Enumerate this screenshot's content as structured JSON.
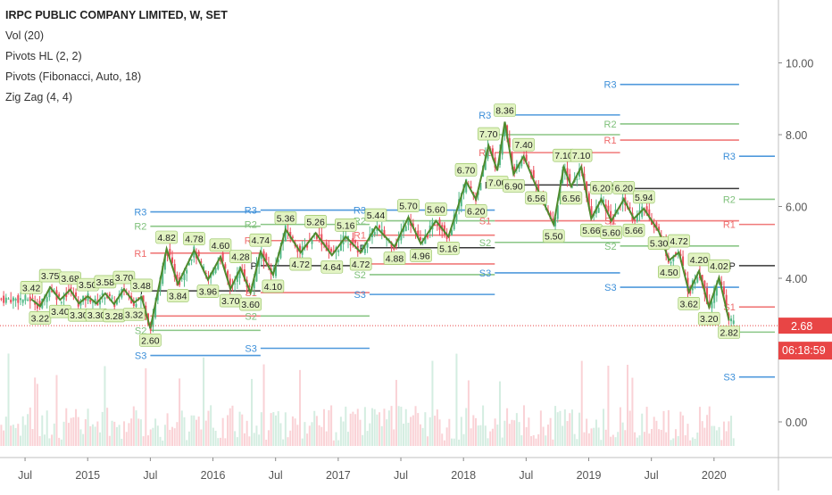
{
  "header": {
    "title": "IRPC PUBLIC COMPANY LIMITED, W, SET",
    "indicators": [
      "Vol (20)",
      "Pivots HL (2, 2)",
      "Pivots (Fibonacci, Auto, 18)",
      "Zig Zag (4, 4)"
    ]
  },
  "colors": {
    "candle_up": "#53b987",
    "candle_down": "#eb4d5c",
    "zigzag": "#4f8a2e",
    "pivot_r": "#3c8fd9",
    "pivot_rg": "#7ec07a",
    "pivot_rr": "#ef6b6b",
    "pivot_p": "#222222",
    "pivot_label_bg": "#e2f3c2",
    "price_line": "#e84545"
  },
  "price_axis": {
    "ticks": [
      "10.00",
      "8.00",
      "6.00",
      "4.00",
      "0.00"
    ],
    "last_price": "2.68",
    "countdown": "06:18:59"
  },
  "time_axis": {
    "ticks": [
      "Jul",
      "2015",
      "Jul",
      "2016",
      "Jul",
      "2017",
      "Jul",
      "2018",
      "Jul",
      "2019",
      "Jul",
      "2020"
    ]
  },
  "chart_data": {
    "type": "candlestick",
    "ylim": [
      -0.3,
      11
    ],
    "zigzag": [
      {
        "date": "2014.55",
        "y": 3.42,
        "label": "3.42"
      },
      {
        "date": "2014.62",
        "y": 3.22,
        "label": "3.22"
      },
      {
        "date": "2014.70",
        "y": 3.75,
        "label": "3.75"
      },
      {
        "date": "2014.78",
        "y": 3.4,
        "label": "3.40"
      },
      {
        "date": "2014.86",
        "y": 3.68,
        "label": "3.68"
      },
      {
        "date": "2014.93",
        "y": 3.3,
        "label": "3.30"
      },
      {
        "date": "2015.00",
        "y": 3.5,
        "label": "3.50"
      },
      {
        "date": "2015.07",
        "y": 3.3,
        "label": "3.30"
      },
      {
        "date": "2015.14",
        "y": 3.58,
        "label": "3.58"
      },
      {
        "date": "2015.21",
        "y": 3.28,
        "label": "3.28"
      },
      {
        "date": "2015.29",
        "y": 3.7,
        "label": "3.70"
      },
      {
        "date": "2015.37",
        "y": 3.32,
        "label": "3.32"
      },
      {
        "date": "2015.43",
        "y": 3.48,
        "label": "3.48"
      },
      {
        "date": "2015.50",
        "y": 2.6,
        "label": "2.60"
      },
      {
        "date": "2015.63",
        "y": 4.82,
        "label": "4.82"
      },
      {
        "date": "2015.72",
        "y": 3.84,
        "label": "3.84"
      },
      {
        "date": "2015.85",
        "y": 4.78,
        "label": "4.78"
      },
      {
        "date": "2015.96",
        "y": 3.96,
        "label": "3.96"
      },
      {
        "date": "2016.06",
        "y": 4.6,
        "label": "4.60"
      },
      {
        "date": "2016.14",
        "y": 3.7,
        "label": "3.70"
      },
      {
        "date": "2016.22",
        "y": 4.28,
        "label": "4.28"
      },
      {
        "date": "2016.30",
        "y": 3.6,
        "label": "3.60"
      },
      {
        "date": "2016.38",
        "y": 4.74,
        "label": "4.74"
      },
      {
        "date": "2016.48",
        "y": 4.1,
        "label": "4.10"
      },
      {
        "date": "2016.58",
        "y": 5.36,
        "label": "5.36"
      },
      {
        "date": "2016.70",
        "y": 4.72,
        "label": "4.72"
      },
      {
        "date": "2016.82",
        "y": 5.26,
        "label": "5.26"
      },
      {
        "date": "2016.95",
        "y": 4.64,
        "label": "4.64"
      },
      {
        "date": "2017.06",
        "y": 5.16,
        "label": "5.16"
      },
      {
        "date": "2017.18",
        "y": 4.72,
        "label": "4.72"
      },
      {
        "date": "2017.30",
        "y": 5.44,
        "label": "5.44"
      },
      {
        "date": "2017.45",
        "y": 4.88,
        "label": "4.88"
      },
      {
        "date": "2017.56",
        "y": 5.7,
        "label": "5.70"
      },
      {
        "date": "2017.66",
        "y": 4.96,
        "label": "4.96"
      },
      {
        "date": "2017.78",
        "y": 5.6,
        "label": "5.60"
      },
      {
        "date": "2017.88",
        "y": 5.16,
        "label": "5.16"
      },
      {
        "date": "2018.02",
        "y": 6.7,
        "label": "6.70"
      },
      {
        "date": "2018.10",
        "y": 6.2,
        "label": "6.20"
      },
      {
        "date": "2018.20",
        "y": 7.7,
        "label": "7.70"
      },
      {
        "date": "2018.27",
        "y": 7.0,
        "label": "7.00"
      },
      {
        "date": "2018.33",
        "y": 8.36,
        "label": "8.36"
      },
      {
        "date": "2018.40",
        "y": 6.9,
        "label": "6.90"
      },
      {
        "date": "2018.48",
        "y": 7.4,
        "label": "7.40"
      },
      {
        "date": "2018.58",
        "y": 6.56,
        "label": "6.56"
      },
      {
        "date": "2018.72",
        "y": 5.5,
        "label": "5.50"
      },
      {
        "date": "2018.80",
        "y": 7.1,
        "label": "7.10"
      },
      {
        "date": "2018.86",
        "y": 6.56,
        "label": "6.56"
      },
      {
        "date": "2018.94",
        "y": 7.1,
        "label": "7.10"
      },
      {
        "date": "2019.02",
        "y": 5.66,
        "label": "5.66"
      },
      {
        "date": "2019.10",
        "y": 6.2,
        "label": "6.20"
      },
      {
        "date": "2019.18",
        "y": 5.6,
        "label": "5.60"
      },
      {
        "date": "2019.28",
        "y": 6.2,
        "label": "6.20"
      },
      {
        "date": "2019.36",
        "y": 5.66,
        "label": "5.66"
      },
      {
        "date": "2019.44",
        "y": 5.94,
        "label": "5.94"
      },
      {
        "date": "2019.56",
        "y": 5.3,
        "label": "5.30"
      },
      {
        "date": "2019.64",
        "y": 4.5,
        "label": "4.50"
      },
      {
        "date": "2019.72",
        "y": 4.72,
        "label": "4.72"
      },
      {
        "date": "2019.80",
        "y": 3.62,
        "label": "3.62"
      },
      {
        "date": "2019.88",
        "y": 4.2,
        "label": "4.20"
      },
      {
        "date": "2019.96",
        "y": 3.2,
        "label": "3.20"
      },
      {
        "date": "2020.04",
        "y": 4.02,
        "label": "4.02"
      },
      {
        "date": "2020.12",
        "y": 2.82,
        "label": "2.82"
      }
    ],
    "pivots": [
      {
        "from": 2015.5,
        "to": 2016.38,
        "levels": {
          "R3": 5.85,
          "R2": 5.45,
          "R1": 4.7,
          "P": 3.65,
          "S1": 2.95,
          "S2": 2.55,
          "S3": 1.85
        }
      },
      {
        "from": 2016.38,
        "to": 2017.25,
        "levels": {
          "R3": 5.9,
          "R2": 5.5,
          "R1": 5.05,
          "P": 4.35,
          "S1": 3.6,
          "S2": 2.95,
          "S3": 2.05
        }
      },
      {
        "from": 2017.25,
        "to": 2018.25,
        "levels": {
          "R3": 5.9,
          "R2": 5.6,
          "R1": 5.2,
          "P": 4.85,
          "S1": 4.4,
          "S2": 4.1,
          "S3": 3.55
        }
      },
      {
        "from": 2018.25,
        "to": 2019.25,
        "levels": {
          "R3": 8.55,
          "R2": 8.0,
          "R1": 7.5,
          "P": 6.6,
          "S1": 5.6,
          "S2": 5.0,
          "S3": 4.15
        }
      },
      {
        "from": 2019.25,
        "to": 2020.2,
        "levels": {
          "R3": 9.4,
          "R2": 8.3,
          "R1": 7.85,
          "P": 6.5,
          "S1": 5.6,
          "S2": 4.9,
          "S3": 3.75
        }
      },
      {
        "from": 2020.2,
        "to": 2020.5,
        "levels": {
          "R3": 7.4,
          "R2": 6.2,
          "R1": 5.5,
          "P": 4.35,
          "S1": 3.2,
          "S2": 2.5,
          "S3": 1.25
        }
      }
    ]
  }
}
